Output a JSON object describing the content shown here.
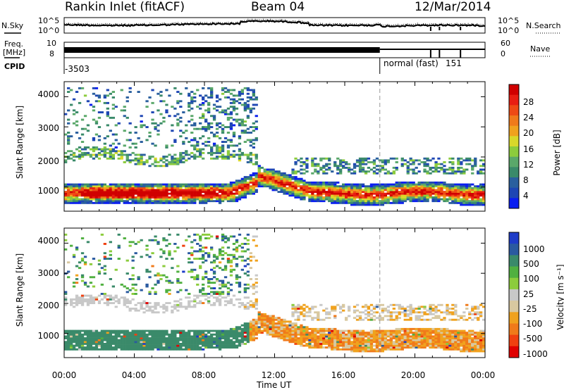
{
  "header": {
    "station": "Rankin Inlet (fitACF)",
    "beam": "Beam 04",
    "date": "12/Mar/2014"
  },
  "top_panels": {
    "nsky_label": "N.Sky",
    "nsearch_label": "N.Search",
    "noise_ticks": [
      "10^5",
      "10^0"
    ],
    "freq_label_line1": "Freq.",
    "freq_label_line2": "[MHz]",
    "freq_ticks": [
      "10",
      "8"
    ],
    "nave_label": "Nave",
    "nave_ticks": [
      "60",
      "0"
    ],
    "cpid_label": "CPID",
    "cpid_value": "-3503",
    "mode_label": "normal (fast)",
    "mode_value": "151"
  },
  "colors": {
    "power_scale": [
      "#0a1ef0",
      "#1e46b4",
      "#2a5f9e",
      "#3a8a6a",
      "#5aa86a",
      "#8ccc3c",
      "#d8d82a",
      "#f0a21e",
      "#f07a1a",
      "#ee4a14",
      "#e81e12",
      "#d00000"
    ],
    "velocity_scale": [
      "#1e3cc8",
      "#2a5aa0",
      "#3a8a6a",
      "#50b040",
      "#8ccc3c",
      "#c8c8c8",
      "#d8c8a0",
      "#f0a21e",
      "#f07a1a",
      "#f04010",
      "#e00000"
    ]
  },
  "chart_data": [
    {
      "type": "line",
      "panel": "noise",
      "series": [
        {
          "name": "N.Sky"
        },
        {
          "name": "N.Search"
        }
      ],
      "ylim_label": [
        "10^0",
        "10^5"
      ]
    },
    {
      "type": "line",
      "panel": "frequency",
      "ylabel": "Freq. [MHz]",
      "ylim": [
        8,
        10
      ],
      "series": [
        {
          "name": "Freq."
        },
        {
          "name": "Nave"
        }
      ]
    },
    {
      "type": "heatmap",
      "panel": "power",
      "ylabel": "Slant Range [km]",
      "yticks": [
        "1000",
        "2000",
        "3000",
        "4000"
      ],
      "ylim": [
        200,
        4500
      ],
      "xlim_hours": [
        0,
        24
      ],
      "colorbar_label": "Power [dB]",
      "colorbar_ticks": [
        "4",
        "8",
        "12",
        "16",
        "20",
        "24",
        "28"
      ]
    },
    {
      "type": "heatmap",
      "panel": "velocity",
      "xlabel": "Time UT",
      "ylabel": "Slant Range [km]",
      "xticks": [
        "00:00",
        "04:00",
        "08:00",
        "12:00",
        "16:00",
        "20:00",
        "00:00"
      ],
      "yticks": [
        "1000",
        "2000",
        "3000",
        "4000"
      ],
      "ylim": [
        200,
        4500
      ],
      "xlim_hours": [
        0,
        24
      ],
      "colorbar_label": "Velocity [m s⁻¹]",
      "colorbar_ticks": [
        "1000",
        "500",
        "100",
        "25",
        "-25",
        "-100",
        "-500",
        "-1000"
      ]
    }
  ]
}
